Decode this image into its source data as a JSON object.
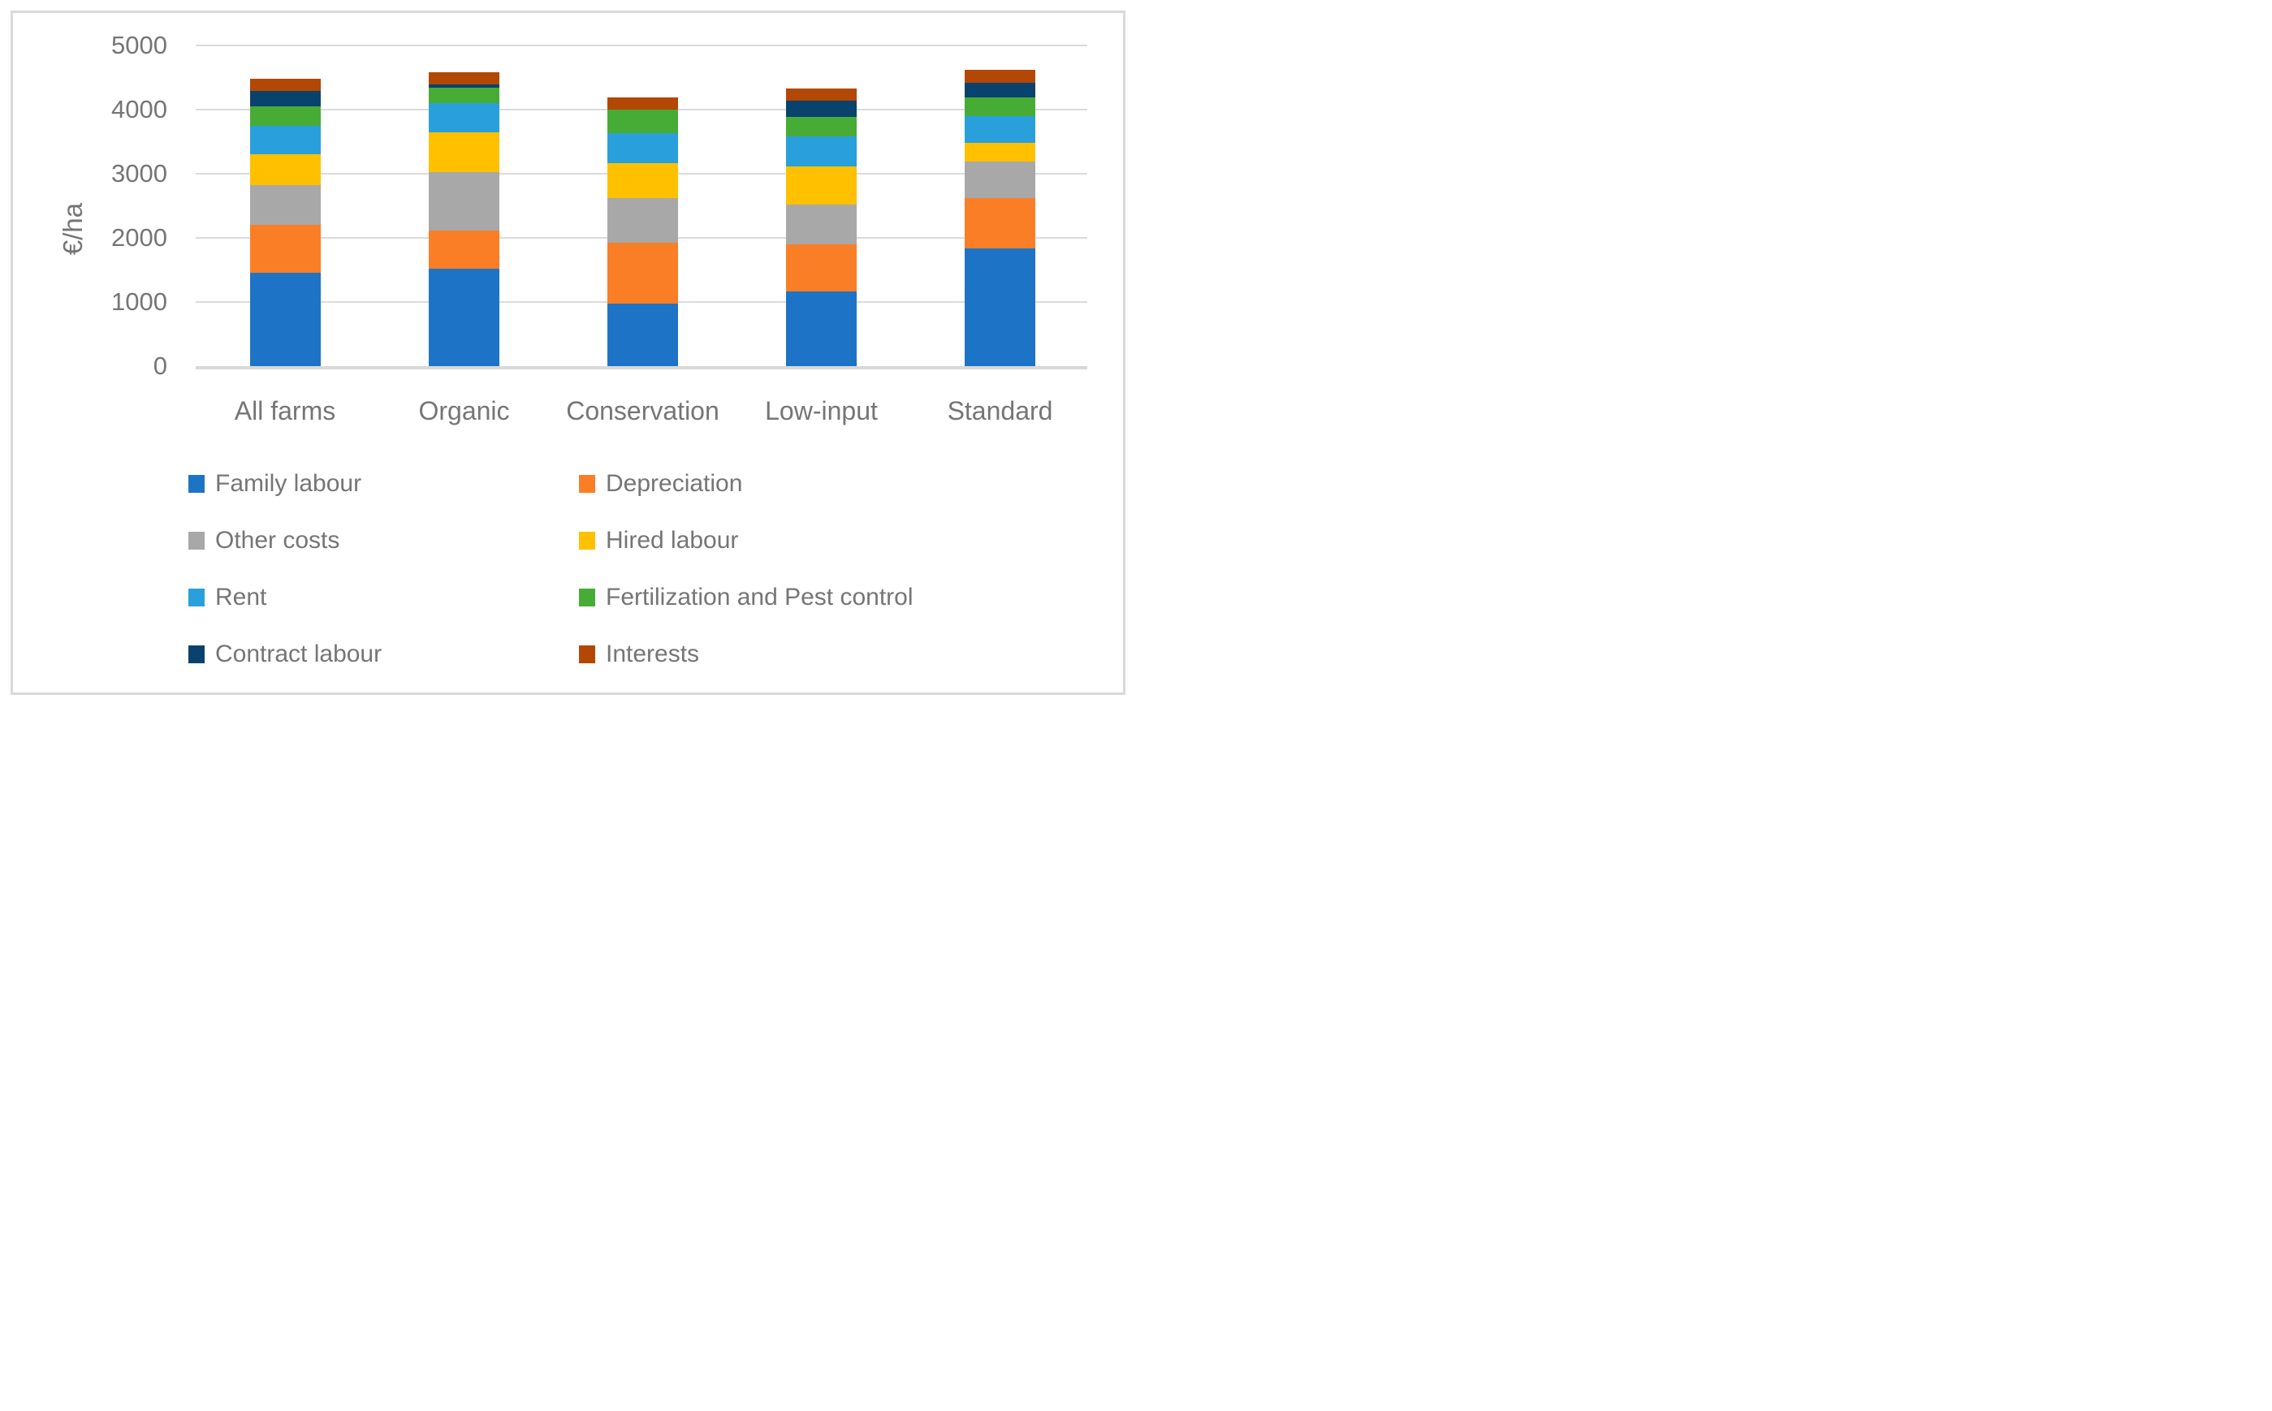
{
  "chart_data": {
    "type": "bar",
    "stacked": true,
    "title": "",
    "ylabel": "€/ha",
    "xlabel": "",
    "ylim": [
      0,
      5000
    ],
    "yticks": [
      0,
      1000,
      2000,
      3000,
      4000,
      5000
    ],
    "grid": true,
    "legend_position": "bottom",
    "legend_columns": 2,
    "categories": [
      "All farms",
      "Organic",
      "Conservation",
      "Low-input",
      "Standard"
    ],
    "series": [
      {
        "name": "Family labour",
        "color": "#1D74C6",
        "values": [
          1450,
          1520,
          970,
          1160,
          1840
        ]
      },
      {
        "name": "Depreciation",
        "color": "#FA7E26",
        "values": [
          750,
          590,
          950,
          745,
          785
        ]
      },
      {
        "name": "Other costs",
        "color": "#A8A8A8",
        "values": [
          620,
          910,
          700,
          620,
          560
        ]
      },
      {
        "name": "Hired labour",
        "color": "#FFC000",
        "values": [
          480,
          620,
          550,
          590,
          300
        ]
      },
      {
        "name": "Rent",
        "color": "#29A0DC",
        "values": [
          445,
          465,
          460,
          470,
          415
        ]
      },
      {
        "name": "Fertilization and Pest control",
        "color": "#47AC35",
        "values": [
          305,
          240,
          370,
          305,
          295
        ]
      },
      {
        "name": "Contract labour",
        "color": "#09426D",
        "values": [
          240,
          45,
          0,
          250,
          220
        ]
      },
      {
        "name": "Interests",
        "color": "#B34704",
        "values": [
          190,
          190,
          195,
          190,
          200
        ]
      }
    ],
    "totals": [
      4480,
      4580,
      4195,
      4330,
      4615
    ]
  },
  "theme": {
    "background": "#FFFFFF",
    "border_color": "#D9D9D9",
    "grid_color": "#DBDBDB",
    "axis_color": "#D9D9D9",
    "text_color": "#757575"
  }
}
